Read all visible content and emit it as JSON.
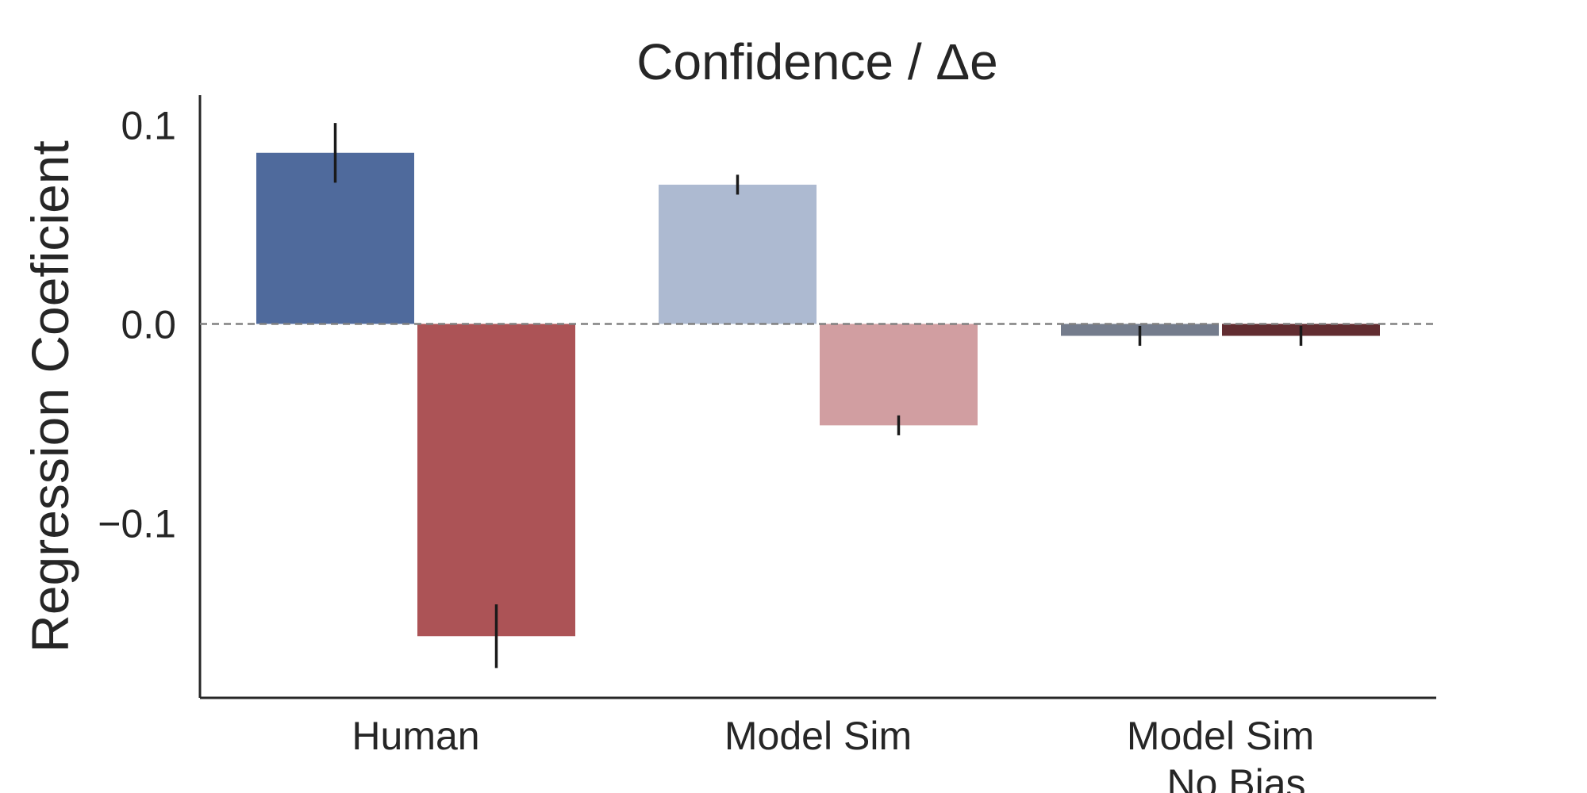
{
  "chart_data": {
    "type": "bar",
    "title": "Confidence /  Δe",
    "xlabel": "",
    "ylabel": "Regression Coeficient",
    "ylim": [
      -0.188,
      0.115
    ],
    "yticks": [
      {
        "value": 0.1,
        "label": "0.1"
      },
      {
        "value": 0.0,
        "label": "0.0"
      },
      {
        "value": -0.1,
        "label": "−0.1"
      }
    ],
    "categories": [
      {
        "lines": [
          "Human"
        ]
      },
      {
        "lines": [
          "Model Sim"
        ]
      },
      {
        "lines": [
          "Model Sim",
          "No Bias"
        ]
      }
    ],
    "series": [
      {
        "values": [
          0.086,
          0.07,
          -0.006
        ],
        "errors": [
          0.015,
          0.005,
          0.005
        ],
        "colors": [
          "#4f6a9c",
          "#adbad1",
          "#747c8c"
        ]
      },
      {
        "values": [
          -0.157,
          -0.051,
          -0.006
        ],
        "errors": [
          0.016,
          0.005,
          0.005
        ],
        "colors": [
          "#ac5356",
          "#d19ea1",
          "#622d31"
        ]
      }
    ],
    "zero_line": {
      "style": "dashed",
      "color": "#808080"
    },
    "grid": false,
    "legend": "none"
  }
}
